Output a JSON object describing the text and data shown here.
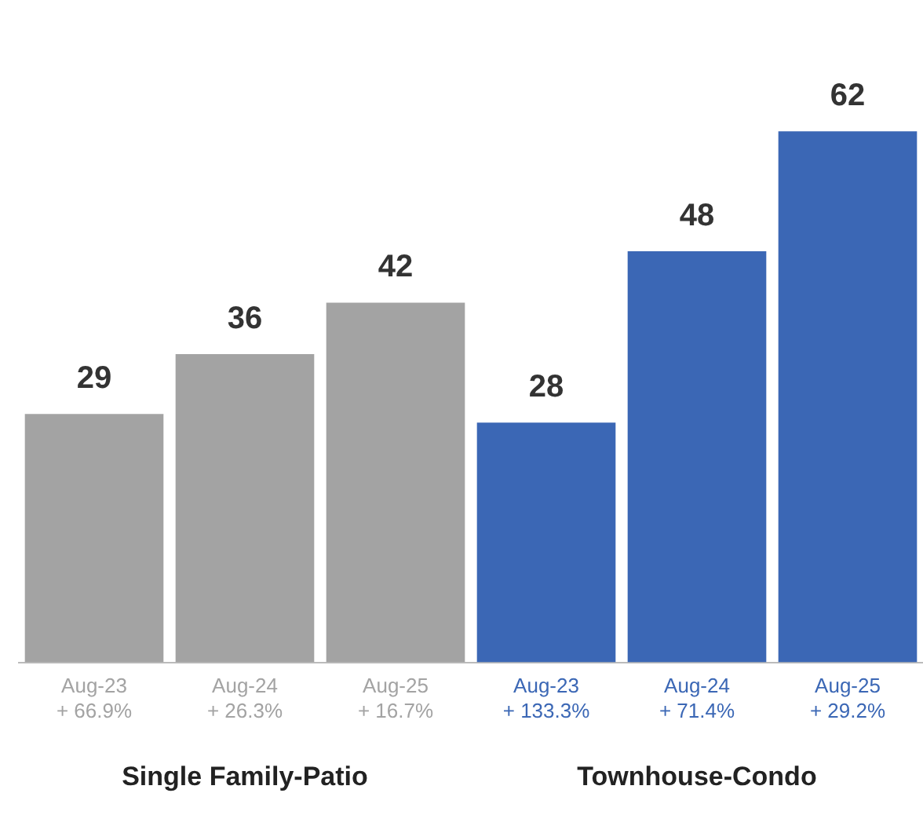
{
  "chart_data": {
    "type": "bar",
    "categories": [
      "Aug-23\n+ 66.9%",
      "Aug-24\n+ 26.3%",
      "Aug-25\n+ 16.7%",
      "Aug-23\n+ 133.3%",
      "Aug-24\n+ 71.4%",
      "Aug-25\n+ 29.2%"
    ],
    "values": [
      29,
      36,
      42,
      28,
      48,
      62
    ],
    "colors": [
      "#a3a3a3",
      "#a3a3a3",
      "#a3a3a3",
      "#3b67b5",
      "#3b67b5",
      "#3b67b5"
    ],
    "data_labels": true,
    "tick_labels": "x",
    "grid": false,
    "legend": false,
    "annotations": [
      "Single Family-Patio",
      "Townhouse-Condo"
    ]
  }
}
